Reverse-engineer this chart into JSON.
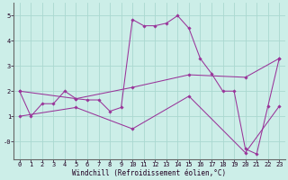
{
  "xlabel": "Windchill (Refroidissement éolien,°C)",
  "bg_color": "#cceee8",
  "grid_color": "#aad8d0",
  "line_color": "#993399",
  "spine_color": "#666666",
  "xlim": [
    -0.5,
    23.5
  ],
  "ylim": [
    -0.7,
    5.5
  ],
  "xticks": [
    0,
    1,
    2,
    3,
    4,
    5,
    6,
    7,
    8,
    9,
    10,
    11,
    12,
    13,
    14,
    15,
    16,
    17,
    18,
    19,
    20,
    21,
    22,
    23
  ],
  "yticks": [
    0,
    1,
    2,
    3,
    4,
    5
  ],
  "ytick_labels": [
    "-0",
    "1",
    "2",
    "3",
    "4",
    "5"
  ],
  "series1_x": [
    0,
    1,
    2,
    3,
    4,
    5,
    6,
    7,
    8,
    9,
    10,
    11,
    12,
    13,
    14,
    15,
    16,
    17,
    18,
    19,
    20,
    21,
    22,
    23
  ],
  "series1_y": [
    2.0,
    1.0,
    1.5,
    1.5,
    2.0,
    1.7,
    1.65,
    1.65,
    1.2,
    1.35,
    4.85,
    4.6,
    4.6,
    4.7,
    5.0,
    4.5,
    3.3,
    2.7,
    2.0,
    2.0,
    -0.3,
    -0.5,
    1.4,
    3.3
  ],
  "series2_x": [
    0,
    5,
    10,
    15,
    20,
    23
  ],
  "series2_y": [
    2.0,
    1.7,
    2.15,
    2.65,
    2.55,
    3.3
  ],
  "series3_x": [
    0,
    5,
    10,
    15,
    20,
    23
  ],
  "series3_y": [
    1.0,
    1.35,
    0.5,
    1.8,
    -0.45,
    1.4
  ],
  "tick_fontsize": 5,
  "label_fontsize": 5.5
}
